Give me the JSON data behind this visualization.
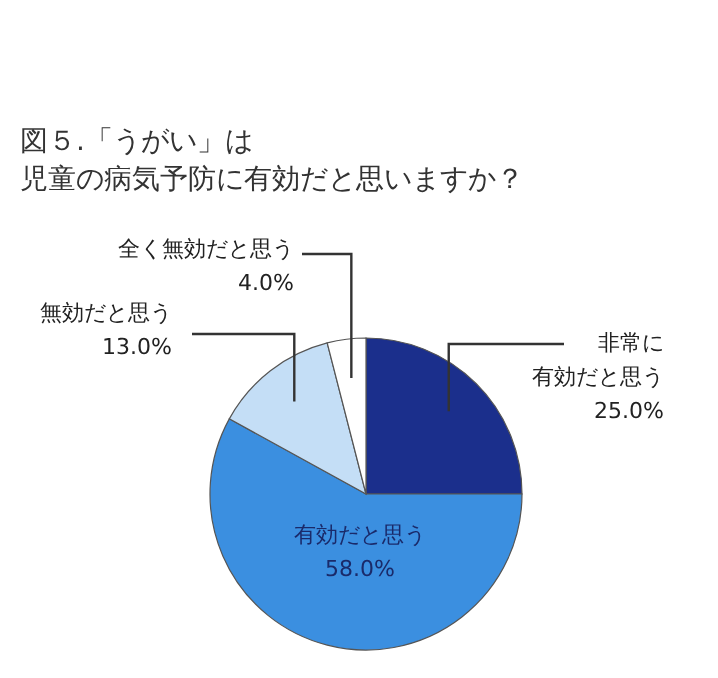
{
  "chart_data": {
    "type": "pie",
    "title": "図５.「うがい」は児童の病気予防に有効だと思いますか？",
    "categories": [
      "非常に有効だと思う",
      "有効だと思う",
      "無効だと思う",
      "全く無効だと思う"
    ],
    "values": [
      25.0,
      58.0,
      13.0,
      4.0
    ],
    "colors": [
      "#1b2f8c",
      "#3b8fe0",
      "#c4def6",
      "#ffffff"
    ],
    "value_labels": [
      "25.0%",
      "58.0%",
      "13.0%",
      "4.0%"
    ]
  }
}
